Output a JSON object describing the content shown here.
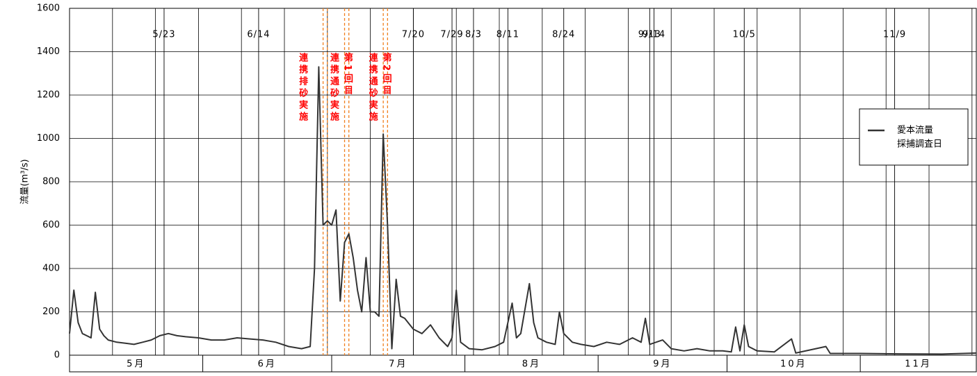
{
  "chart_data": {
    "type": "line",
    "y_label": "流量(m³/s)",
    "xlim": [
      "5/1",
      "11/28"
    ],
    "ylim": [
      0,
      1600
    ],
    "yticks": [
      0,
      200,
      400,
      600,
      800,
      1000,
      1200,
      1400,
      1600
    ],
    "grid": true,
    "months": [
      "5月",
      "6月",
      "7月",
      "8月",
      "9月",
      "10月",
      "11月"
    ],
    "series": [
      {
        "name": "愛本流量",
        "color": "#333333",
        "x": [
          "5/1",
          "5/2",
          "5/3",
          "5/4",
          "5/5",
          "5/6",
          "5/7",
          "5/8",
          "5/9",
          "5/10",
          "5/12",
          "5/14",
          "5/16",
          "5/18",
          "5/20",
          "5/22",
          "5/24",
          "5/26",
          "5/28",
          "5/31",
          "6/3",
          "6/6",
          "6/9",
          "6/12",
          "6/15",
          "6/18",
          "6/21",
          "6/24",
          "6/26",
          "6/27",
          "6/28",
          "6/29",
          "6/30",
          "7/1",
          "7/2",
          "7/3",
          "7/4",
          "7/5",
          "7/6",
          "7/7",
          "7/8",
          "7/9",
          "7/10",
          "7/11",
          "7/12",
          "7/13",
          "7/14",
          "7/15",
          "7/16",
          "7/17",
          "7/18",
          "7/20",
          "7/22",
          "7/24",
          "7/26",
          "7/28",
          "7/29",
          "7/30",
          "7/31",
          "8/2",
          "8/5",
          "8/8",
          "8/10",
          "8/12",
          "8/13",
          "8/14",
          "8/16",
          "8/17",
          "8/18",
          "8/20",
          "8/22",
          "8/23",
          "8/24",
          "8/26",
          "8/28",
          "8/31",
          "9/3",
          "9/6",
          "9/9",
          "9/11",
          "9/12",
          "9/13",
          "9/16",
          "9/18",
          "9/21",
          "9/24",
          "9/27",
          "9/30",
          "10/2",
          "10/3",
          "10/4",
          "10/5",
          "10/6",
          "10/8",
          "10/12",
          "10/16",
          "10/17",
          "10/24",
          "10/25",
          "11/1",
          "11/10",
          "11/20",
          "11/28"
        ],
        "values": [
          100,
          300,
          150,
          100,
          90,
          80,
          290,
          120,
          90,
          70,
          60,
          55,
          50,
          60,
          70,
          90,
          100,
          90,
          85,
          80,
          70,
          70,
          80,
          75,
          70,
          60,
          40,
          30,
          40,
          400,
          1330,
          600,
          620,
          600,
          670,
          250,
          520,
          560,
          450,
          300,
          200,
          450,
          200,
          200,
          180,
          1020,
          600,
          30,
          350,
          180,
          170,
          120,
          100,
          140,
          80,
          40,
          80,
          300,
          60,
          30,
          25,
          40,
          60,
          240,
          80,
          100,
          330,
          150,
          80,
          60,
          50,
          200,
          100,
          60,
          50,
          40,
          60,
          50,
          80,
          60,
          170,
          50,
          70,
          30,
          20,
          30,
          20,
          20,
          15,
          130,
          20,
          140,
          40,
          20,
          15,
          75,
          10,
          40,
          8,
          8,
          6,
          5,
          10
        ]
      },
      {
        "name": "採捕調査日",
        "color": "#000000",
        "dates": [
          "5/23",
          "6/14",
          "7/20",
          "7/29",
          "8/3",
          "8/11",
          "8/24",
          "9/13",
          "9/14",
          "10/5",
          "11/9"
        ]
      }
    ],
    "events": [
      {
        "lines": [
          "6/29",
          "6/30"
        ],
        "labels": [
          "連携排砂実施"
        ]
      },
      {
        "lines": [
          "7/4",
          "7/5"
        ],
        "labels": [
          "連携通砂実施",
          "第1回目"
        ]
      },
      {
        "lines": [
          "7/13",
          "7/14"
        ],
        "labels": [
          "連携通砂実施",
          "第2回目"
        ]
      }
    ],
    "event_color": "#ff0000",
    "event_line_color": "#f08020"
  }
}
